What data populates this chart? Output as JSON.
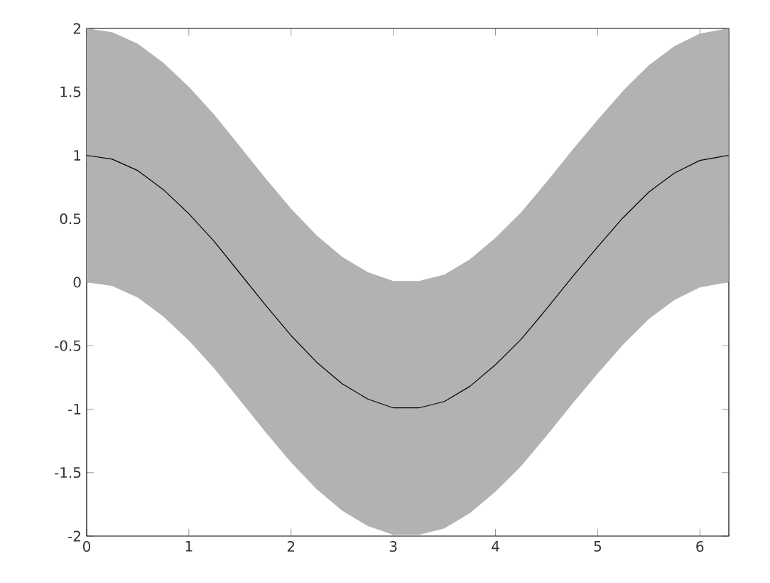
{
  "chart_data": {
    "type": "line",
    "x": [
      0,
      0.25,
      0.5,
      0.75,
      1,
      1.25,
      1.5,
      1.75,
      2,
      2.25,
      2.5,
      2.75,
      3,
      3.25,
      3.5,
      3.75,
      4,
      4.25,
      4.5,
      4.75,
      5,
      5.25,
      5.5,
      5.75,
      6,
      6.28
    ],
    "series": [
      {
        "color": "#000000",
        "values": [
          1,
          0.97,
          0.88,
          0.73,
          0.54,
          0.32,
          0.07,
          -0.18,
          -0.42,
          -0.63,
          -0.8,
          -0.92,
          -0.99,
          -0.99,
          -0.94,
          -0.82,
          -0.65,
          -0.45,
          -0.21,
          0.04,
          0.28,
          0.51,
          0.71,
          0.86,
          0.96,
          1
        ],
        "lower": [
          0,
          -0.03,
          -0.12,
          -0.27,
          -0.46,
          -0.68,
          -0.93,
          -1.18,
          -1.42,
          -1.63,
          -1.8,
          -1.92,
          -1.99,
          -1.99,
          -1.94,
          -1.82,
          -1.65,
          -1.45,
          -1.21,
          -0.96,
          -0.72,
          -0.49,
          -0.29,
          -0.14,
          -0.04,
          0
        ],
        "upper": [
          2,
          1.97,
          1.88,
          1.73,
          1.54,
          1.32,
          1.07,
          0.82,
          0.58,
          0.37,
          0.2,
          0.08,
          0.01,
          0.01,
          0.06,
          0.18,
          0.35,
          0.55,
          0.79,
          1.04,
          1.28,
          1.51,
          1.71,
          1.86,
          1.96,
          2
        ]
      }
    ],
    "xlim": [
      0,
      6.2832
    ],
    "ylim": [
      -2,
      2
    ],
    "xticks": [
      0,
      1,
      2,
      3,
      4,
      5,
      6
    ],
    "yticks": [
      -2,
      -1.5,
      -1,
      -0.5,
      0,
      0.5,
      1,
      1.5,
      2
    ],
    "marker": "none",
    "line_style": "solid"
  }
}
